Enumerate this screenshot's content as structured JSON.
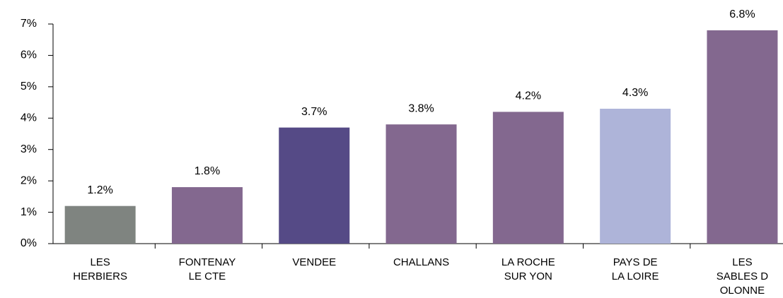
{
  "chart_data": {
    "type": "bar",
    "categories": [
      "LES\nHERBIERS",
      "FONTENAY\nLE CTE",
      "VENDEE",
      "CHALLANS",
      "LA ROCHE\nSUR YON",
      "PAYS DE\nLA LOIRE",
      "LES\nSABLES D\nOLONNE"
    ],
    "values": [
      1.2,
      1.8,
      3.7,
      3.8,
      4.2,
      4.3,
      6.8
    ],
    "value_labels": [
      "1.2%",
      "1.8%",
      "3.7%",
      "3.8%",
      "4.2%",
      "4.3%",
      "6.8%"
    ],
    "colors": [
      "#7f8480",
      "#83688f",
      "#554a86",
      "#83688f",
      "#83688f",
      "#aeb4d9",
      "#83688f"
    ],
    "ylim": [
      0,
      7
    ],
    "yticks": [
      {
        "value": 0,
        "label": "0%"
      },
      {
        "value": 1,
        "label": "1%"
      },
      {
        "value": 2,
        "label": "2%"
      },
      {
        "value": 3,
        "label": "3%"
      },
      {
        "value": 4,
        "label": "4%"
      },
      {
        "value": 5,
        "label": "5%"
      },
      {
        "value": 6,
        "label": "6%"
      },
      {
        "value": 7,
        "label": "7%"
      }
    ],
    "grid": false
  }
}
